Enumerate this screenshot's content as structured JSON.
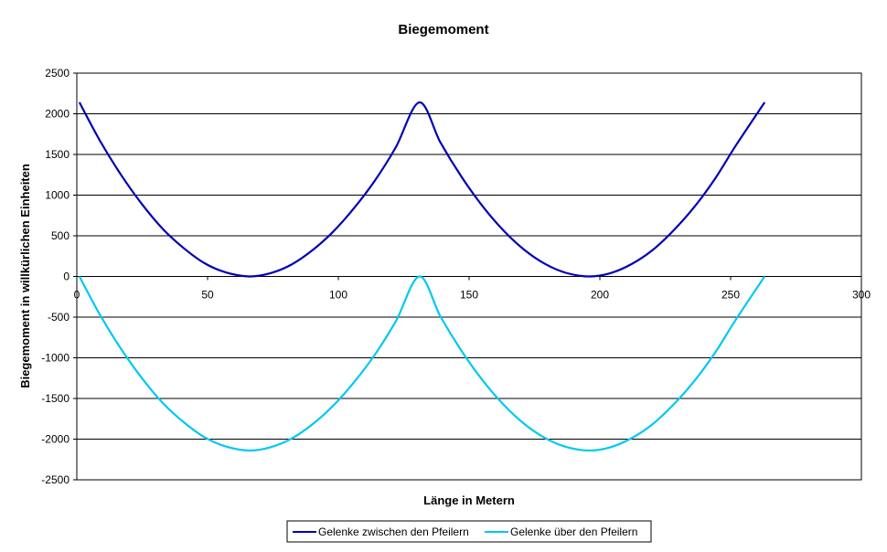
{
  "chart_data": {
    "type": "line",
    "title": "Biegemoment",
    "xlabel": "Länge in Metern",
    "ylabel": "Biegemoment in willkürlichen Einheiten",
    "xlim": [
      0,
      300
    ],
    "ylim": [
      -2500,
      2500
    ],
    "x_ticks": [
      0,
      50,
      100,
      150,
      200,
      250,
      300
    ],
    "y_ticks": [
      2500,
      2000,
      1500,
      1000,
      500,
      0,
      -500,
      -1000,
      -1500,
      -2000,
      -2500
    ],
    "grid": "horizontal major gridlines",
    "legend_position": "bottom",
    "series": [
      {
        "name": "Gelenke zwischen den Pfeilern",
        "color": "#0000B4",
        "x": [
          1,
          9,
          17,
          25,
          33,
          41,
          49,
          57,
          66,
          74,
          82,
          90,
          98,
          106,
          114,
          122,
          131,
          139,
          147,
          155,
          163,
          171,
          179,
          187,
          196,
          204,
          212,
          220,
          228,
          236,
          244,
          252,
          263
        ],
        "y": [
          2140,
          1660,
          1245,
          885,
          580,
          345,
          160,
          50,
          0,
          40,
          145,
          320,
          550,
          840,
          1180,
          1590,
          2140,
          1650,
          1230,
          870,
          570,
          330,
          155,
          45,
          0,
          40,
          150,
          320,
          560,
          850,
          1200,
          1610,
          2140
        ]
      },
      {
        "name": "Gelenke über den Pfeilern",
        "color": "#00C8F0",
        "x": [
          1,
          9,
          17,
          25,
          33,
          41,
          49,
          57,
          66,
          74,
          82,
          90,
          98,
          106,
          114,
          122,
          131,
          139,
          147,
          155,
          163,
          171,
          179,
          187,
          196,
          204,
          212,
          220,
          228,
          236,
          244,
          252,
          263
        ],
        "y": [
          0,
          -480,
          -895,
          -1255,
          -1560,
          -1795,
          -1980,
          -2090,
          -2140,
          -2100,
          -1995,
          -1820,
          -1590,
          -1300,
          -960,
          -550,
          0,
          -490,
          -910,
          -1270,
          -1570,
          -1810,
          -1985,
          -2095,
          -2140,
          -2100,
          -1990,
          -1820,
          -1580,
          -1290,
          -940,
          -530,
          0
        ]
      }
    ]
  }
}
